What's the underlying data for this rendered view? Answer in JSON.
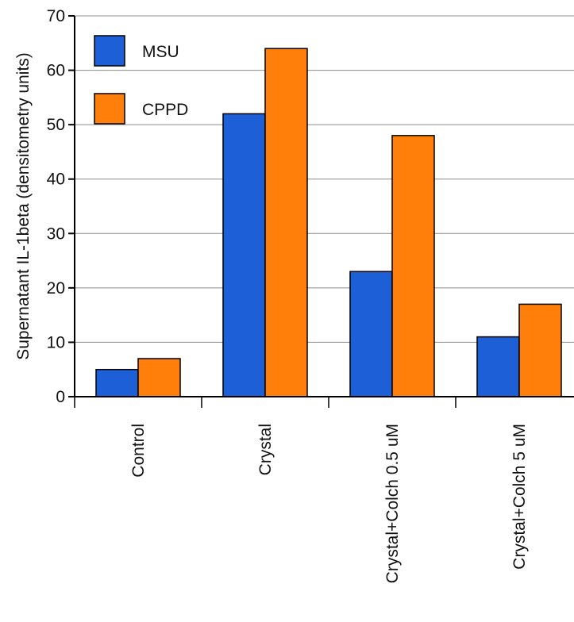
{
  "chart_data": {
    "type": "bar",
    "title": "",
    "xlabel": "",
    "ylabel": "Supernatant IL-1beta (densitometry units)",
    "categories": [
      "Control",
      "Crystal",
      "Crystal+Colch 0.5 uM",
      "Crystal+Colch 5 uM"
    ],
    "series": [
      {
        "name": "MSU",
        "color": "#1c5fd6",
        "values": [
          5,
          52,
          23,
          11
        ]
      },
      {
        "name": "CPPD",
        "color": "#ff7f0a",
        "values": [
          7,
          64,
          48,
          17
        ]
      }
    ],
    "ylim": [
      0,
      70
    ],
    "yticks": [
      0,
      10,
      20,
      30,
      40,
      50,
      60,
      70
    ],
    "grid": true,
    "legend_position": "top-left"
  }
}
